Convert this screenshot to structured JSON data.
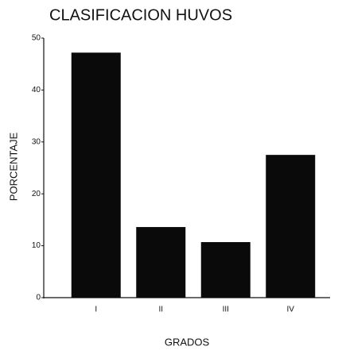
{
  "chart_data": {
    "type": "bar",
    "title": "CLASIFICACION HUVOS",
    "x_label": "GRADOS",
    "y_label": "PORCENTAJE",
    "categories": [
      "I",
      "II",
      "III",
      "IV"
    ],
    "values": [
      47.2,
      13.6,
      10.7,
      27.5
    ],
    "color": "#0a0a0a",
    "ylim": [
      0,
      50
    ],
    "yticks": [
      0,
      10,
      20,
      30,
      40,
      50
    ],
    "grid": false
  }
}
